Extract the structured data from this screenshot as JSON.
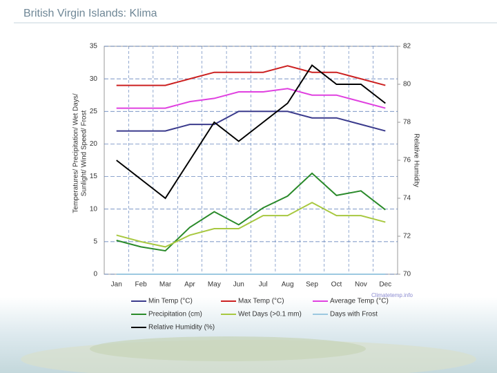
{
  "slide_title": "British Virgin Islands: Klima",
  "chart_data": {
    "type": "line",
    "y_label_lines": [
      "Temperatures/ Precipitation/ Wet Days/",
      "Sunlight/ Wind Speed/ Frost"
    ],
    "y2_label": "Relative Humidity",
    "watermark": "Climatetemp.info",
    "categories": [
      "Jan",
      "Feb",
      "Mar",
      "Apr",
      "May",
      "Jun",
      "Jul",
      "Aug",
      "Sep",
      "Oct",
      "Nov",
      "Dec"
    ],
    "ylim": [
      0,
      35
    ],
    "yticks": [
      0,
      5,
      10,
      15,
      20,
      25,
      30,
      35
    ],
    "y2lim": [
      70,
      82
    ],
    "y2ticks": [
      70,
      72,
      74,
      76,
      78,
      80,
      82
    ],
    "grid": true,
    "series": [
      {
        "name": "Min Temp (°C)",
        "color": "#3a3a8c",
        "values": [
          22,
          22,
          22,
          23,
          23,
          25,
          25,
          25,
          24,
          24,
          23,
          22
        ]
      },
      {
        "name": "Max Temp (°C)",
        "color": "#cc2020",
        "values": [
          29,
          29,
          29,
          30,
          31,
          31,
          31,
          32,
          31,
          31,
          30,
          29
        ]
      },
      {
        "name": "Average Temp (°C)",
        "color": "#e040e0",
        "values": [
          25.5,
          25.5,
          25.5,
          26.5,
          27,
          28,
          28,
          28.5,
          27.5,
          27.5,
          26.5,
          25.5
        ]
      },
      {
        "name": "Precipitation (cm)",
        "color": "#2a8a2a",
        "values": [
          5.2,
          4.2,
          3.6,
          7.2,
          9.6,
          7.6,
          10.2,
          12,
          15.5,
          12.1,
          12.8,
          9.9
        ]
      },
      {
        "name": "Wet Days (>0.1 mm)",
        "color": "#a8c840",
        "values": [
          6,
          5,
          4.2,
          6,
          7,
          7,
          9,
          9,
          11,
          9,
          9,
          8
        ]
      },
      {
        "name": "Days with Frost",
        "color": "#9cc8e0",
        "values": [
          0,
          0,
          0,
          0,
          0,
          0,
          0,
          0,
          0,
          0,
          0,
          0
        ]
      },
      {
        "name": "Relative Humidity (%)",
        "color": "#000000",
        "axis": "y2",
        "values": [
          76,
          75,
          74,
          76,
          78,
          77,
          78,
          79,
          81,
          80,
          80,
          79
        ]
      }
    ]
  }
}
